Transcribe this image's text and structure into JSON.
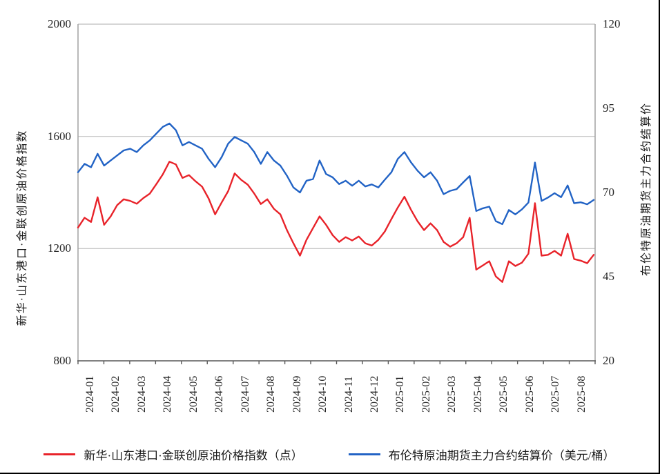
{
  "left_axis": {
    "title": "新华·山东港口·金联创原油价格指数",
    "tick_labels": [
      "2000",
      "1600",
      "1200",
      "800"
    ],
    "min": 800,
    "max": 2000
  },
  "right_axis": {
    "title": "布伦特原油期货主力合约结算价",
    "tick_labels": [
      "120",
      "95",
      "70",
      "45",
      "20"
    ],
    "min": 20,
    "max": 120
  },
  "x_axis": {
    "labels": [
      "2024-01",
      "2024-02",
      "2024-03",
      "2024-04",
      "2024-05",
      "2024-06",
      "2024-07",
      "2024-08",
      "2024-09",
      "2024-10",
      "2024-11",
      "2024-12",
      "2025-01",
      "2025-02",
      "2025-03",
      "2025-04",
      "2025-05",
      "2025-06",
      "2025-07",
      "2025-08"
    ]
  },
  "legend": {
    "items": [
      {
        "label": "新华·山东港口·金联创原油价格指数（点）",
        "color": "#e8232a"
      },
      {
        "label": "布伦特原油期货主力合约结算价（美元/桶）",
        "color": "#2263c5"
      }
    ]
  },
  "colors": {
    "red_series": "#e8232a",
    "blue_series": "#2263c5",
    "gridline": "#c8c8c8",
    "side_axis": "#a6a6a6",
    "bottom_axis": "#595959"
  },
  "chart_data": {
    "type": "line",
    "title": "",
    "grid": true,
    "legend_position": "bottom",
    "x_label_rotation": 90,
    "left_ylim": [
      800,
      2000
    ],
    "right_ylim": [
      20,
      120
    ],
    "x": [
      "2024-01-02",
      "2024-01-09",
      "2024-01-17",
      "2024-01-25",
      "2024-02-02",
      "2024-02-09",
      "2024-02-17",
      "2024-02-25",
      "2024-03-02",
      "2024-03-09",
      "2024-03-17",
      "2024-03-25",
      "2024-04-02",
      "2024-04-09",
      "2024-04-17",
      "2024-04-25",
      "2024-05-02",
      "2024-05-09",
      "2024-05-17",
      "2024-05-25",
      "2024-06-02",
      "2024-06-09",
      "2024-06-17",
      "2024-06-25",
      "2024-07-02",
      "2024-07-09",
      "2024-07-17",
      "2024-07-25",
      "2024-08-02",
      "2024-08-09",
      "2024-08-17",
      "2024-08-25",
      "2024-09-02",
      "2024-09-09",
      "2024-09-17",
      "2024-09-25",
      "2024-10-02",
      "2024-10-09",
      "2024-10-17",
      "2024-10-25",
      "2024-11-02",
      "2024-11-09",
      "2024-11-17",
      "2024-11-25",
      "2024-12-02",
      "2024-12-09",
      "2024-12-17",
      "2024-12-25",
      "2025-01-02",
      "2025-01-09",
      "2025-01-17",
      "2025-01-25",
      "2025-02-02",
      "2025-02-09",
      "2025-02-17",
      "2025-02-25",
      "2025-03-02",
      "2025-03-09",
      "2025-03-17",
      "2025-03-25",
      "2025-04-02",
      "2025-04-09",
      "2025-04-17",
      "2025-04-25",
      "2025-05-02",
      "2025-05-09",
      "2025-05-17",
      "2025-05-25",
      "2025-06-02",
      "2025-06-09",
      "2025-06-17",
      "2025-06-25",
      "2025-07-02",
      "2025-07-09",
      "2025-07-17",
      "2025-07-25",
      "2025-08-02",
      "2025-08-09",
      "2025-08-17",
      "2025-08-25"
    ],
    "series": [
      {
        "name": "新华·山东港口·金联创原油价格指数（点）",
        "axis": "left",
        "color": "#e8232a",
        "values": [
          1275,
          1310,
          1295,
          1383,
          1285,
          1315,
          1355,
          1376,
          1370,
          1360,
          1380,
          1396,
          1430,
          1465,
          1510,
          1500,
          1452,
          1462,
          1440,
          1421,
          1379,
          1322,
          1364,
          1405,
          1468,
          1445,
          1428,
          1396,
          1359,
          1376,
          1342,
          1322,
          1266,
          1219,
          1175,
          1231,
          1273,
          1315,
          1285,
          1248,
          1224,
          1241,
          1229,
          1243,
          1219,
          1211,
          1231,
          1261,
          1305,
          1347,
          1385,
          1339,
          1298,
          1266,
          1290,
          1266,
          1224,
          1207,
          1219,
          1241,
          1310,
          1125,
          1140,
          1155,
          1101,
          1081,
          1155,
          1138,
          1150,
          1182,
          1362,
          1175,
          1178,
          1192,
          1175,
          1253,
          1163,
          1157,
          1148,
          1178
        ]
      },
      {
        "name": "布伦特原油期货主力合约结算价（美元/桶）",
        "axis": "right",
        "color": "#2263c5",
        "values": [
          76.0,
          78.5,
          77.5,
          81.5,
          78.0,
          79.5,
          81.0,
          82.5,
          83.0,
          82.0,
          84.0,
          85.5,
          87.5,
          89.5,
          90.5,
          88.5,
          84.0,
          85.0,
          84.0,
          83.0,
          80.0,
          77.5,
          80.5,
          84.5,
          86.5,
          85.5,
          84.5,
          82.0,
          78.5,
          82.0,
          79.5,
          78.0,
          75.0,
          71.5,
          70.0,
          73.5,
          74.0,
          79.5,
          75.5,
          74.5,
          72.5,
          73.5,
          72.0,
          73.5,
          71.8,
          72.4,
          71.5,
          73.8,
          76.0,
          80.0,
          82.0,
          79.0,
          76.5,
          74.5,
          76.0,
          73.5,
          69.5,
          70.5,
          71.0,
          73.0,
          74.9,
          64.5,
          65.3,
          65.8,
          61.5,
          60.6,
          64.8,
          63.5,
          65.0,
          67.0,
          78.9,
          67.5,
          68.5,
          69.8,
          68.6,
          72.1,
          66.8,
          67.1,
          66.5,
          67.8
        ]
      }
    ]
  }
}
